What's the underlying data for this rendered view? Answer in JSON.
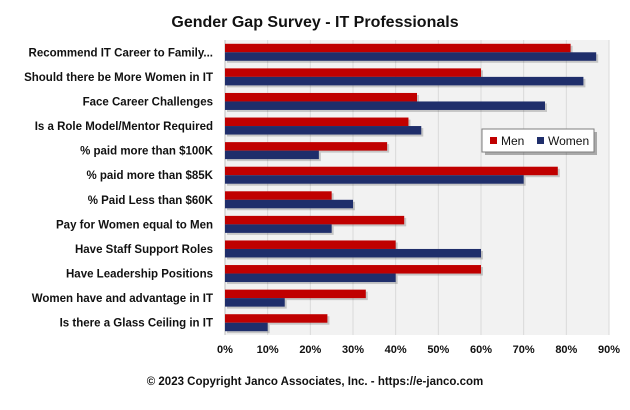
{
  "chart_data": {
    "type": "bar",
    "orientation": "horizontal",
    "title": "Gender Gap Survey - IT Professionals",
    "footer": "© 2023 Copyright Janco Associates, Inc. - https://e-janco.com",
    "categories": [
      "Recommend IT Career to Family...",
      "Should there be More Women in IT",
      "Face Career Challenges",
      "Is a Role Model/Mentor Required",
      "% paid more than $100K",
      "% paid more than $85K",
      "% Paid Less than $60K",
      "Pay for Women equal to Men",
      "Have Staff Support Roles",
      "Have Leadership Positions",
      "Women have and advantage in IT",
      "Is there a Glass Ceiling in IT"
    ],
    "series": [
      {
        "name": "Men",
        "color": "#c00000",
        "values": [
          81,
          60,
          45,
          43,
          38,
          78,
          25,
          42,
          40,
          60,
          33,
          24
        ]
      },
      {
        "name": "Women",
        "color": "#1f2e6b",
        "values": [
          87,
          84,
          75,
          46,
          22,
          70,
          30,
          25,
          60,
          40,
          14,
          10
        ]
      }
    ],
    "xlim": [
      0,
      90
    ],
    "xticks": [
      0,
      10,
      20,
      30,
      40,
      50,
      60,
      70,
      80,
      90
    ],
    "xtick_labels": [
      "0%",
      "10%",
      "20%",
      "30%",
      "40%",
      "50%",
      "60%",
      "70%",
      "80%",
      "90%"
    ],
    "xlabel": "",
    "ylabel": "",
    "legend_position": "right, inside plot",
    "grid": true,
    "plot_background": "#f2f2f2"
  }
}
